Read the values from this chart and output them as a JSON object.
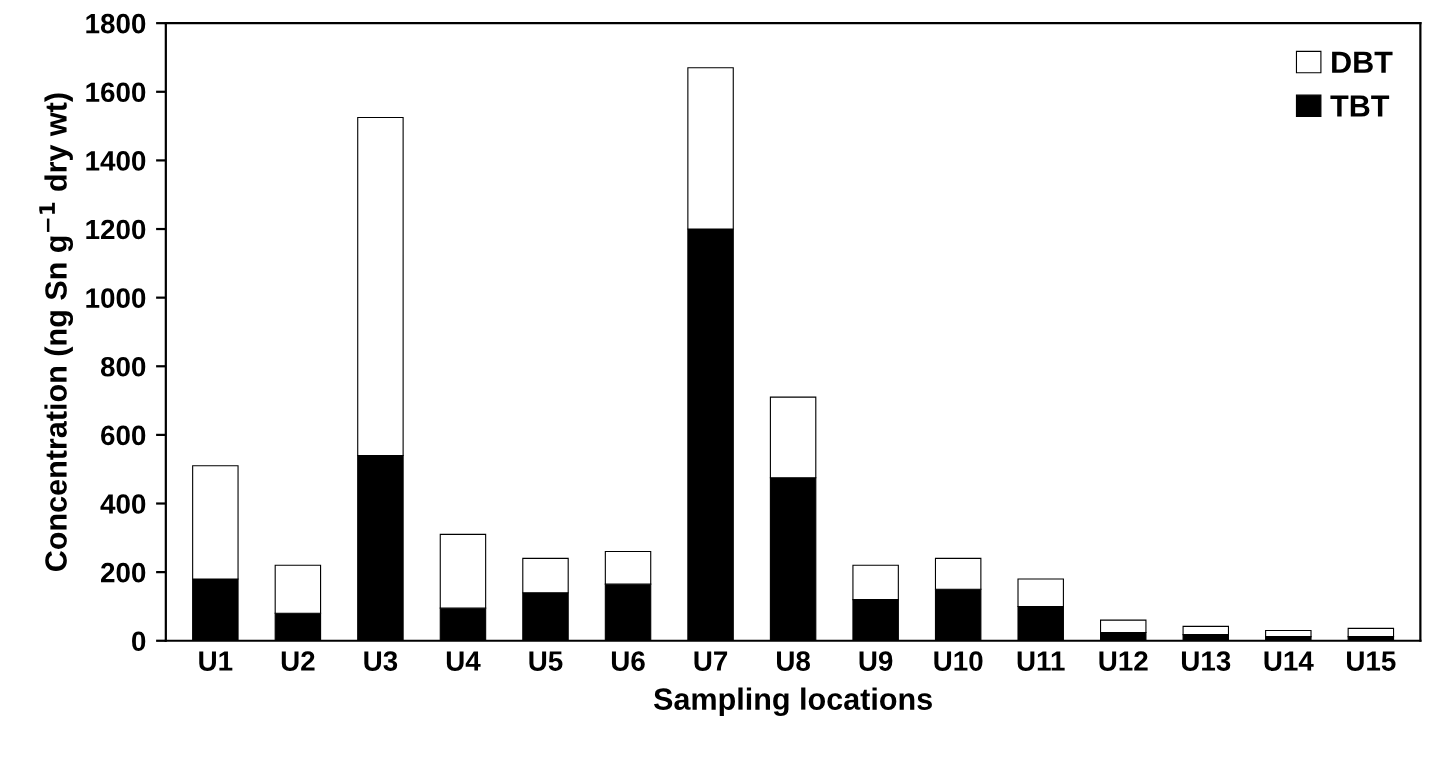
{
  "chart_data": {
    "type": "bar",
    "stacked": true,
    "xlabel": "Sampling locations",
    "ylabel": "Concentration (ng Sn g$^{−1}$ dry wt)",
    "categories": [
      "U1",
      "U2",
      "U3",
      "U4",
      "U5",
      "U6",
      "U7",
      "U8",
      "U9",
      "U10",
      "U11",
      "U12",
      "U13",
      "U14",
      "U15"
    ],
    "series": [
      {
        "name": "TBT",
        "color": "#000000",
        "values": [
          180,
          80,
          540,
          95,
          140,
          165,
          1200,
          475,
          120,
          150,
          100,
          24,
          18,
          12,
          12
        ]
      },
      {
        "name": "DBT",
        "color": "#ffffff",
        "values": [
          330,
          140,
          985,
          215,
          100,
          95,
          470,
          235,
          100,
          90,
          80,
          36,
          24,
          18,
          24
        ]
      }
    ],
    "ylim": [
      0,
      1800
    ],
    "yticks": [
      0,
      200,
      400,
      600,
      800,
      1000,
      1200,
      1400,
      1600,
      1800
    ],
    "grid": false,
    "legend": "top right"
  }
}
